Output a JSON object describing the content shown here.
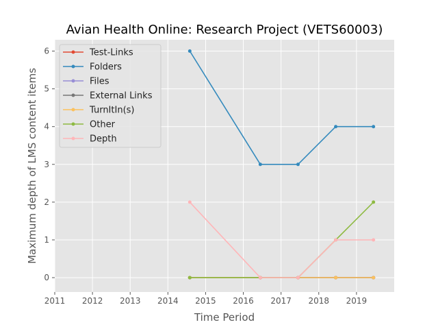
{
  "chart_data": {
    "type": "line",
    "title": "Avian Health Online: Research Project (VETS60003)",
    "xlabel": "Time Period",
    "ylabel": "Maximum depth of LMS content items",
    "xlim": [
      2011,
      2020.0
    ],
    "ylim": [
      -0.38,
      6.3
    ],
    "xticks": [
      2011,
      2012,
      2013,
      2014,
      2015,
      2016,
      2017,
      2018,
      2019
    ],
    "yticks": [
      0,
      1,
      2,
      3,
      4,
      5,
      6
    ],
    "grid": true,
    "legend_position": "top-left",
    "x": [
      2014.58,
      2016.45,
      2017.45,
      2018.45,
      2019.45
    ],
    "series": [
      {
        "name": "Test-Links",
        "color": "#E24A33",
        "values": [
          0,
          0,
          0,
          0,
          0
        ]
      },
      {
        "name": "Folders",
        "color": "#348ABD",
        "values": [
          6,
          3,
          3,
          4,
          4
        ]
      },
      {
        "name": "Files",
        "color": "#988ED5",
        "values": [
          0,
          0,
          0,
          0,
          0
        ]
      },
      {
        "name": "External Links",
        "color": "#777777",
        "values": [
          0,
          0,
          0,
          0,
          0
        ]
      },
      {
        "name": "TurnItIn(s)",
        "color": "#FBC15E",
        "values": [
          0,
          0,
          0,
          0,
          0
        ]
      },
      {
        "name": "Other",
        "color": "#8EBA42",
        "values": [
          0,
          0,
          0,
          1,
          2
        ]
      },
      {
        "name": "Depth",
        "color": "#FFB5B8",
        "values": [
          2,
          0,
          0,
          1,
          1
        ]
      }
    ]
  }
}
